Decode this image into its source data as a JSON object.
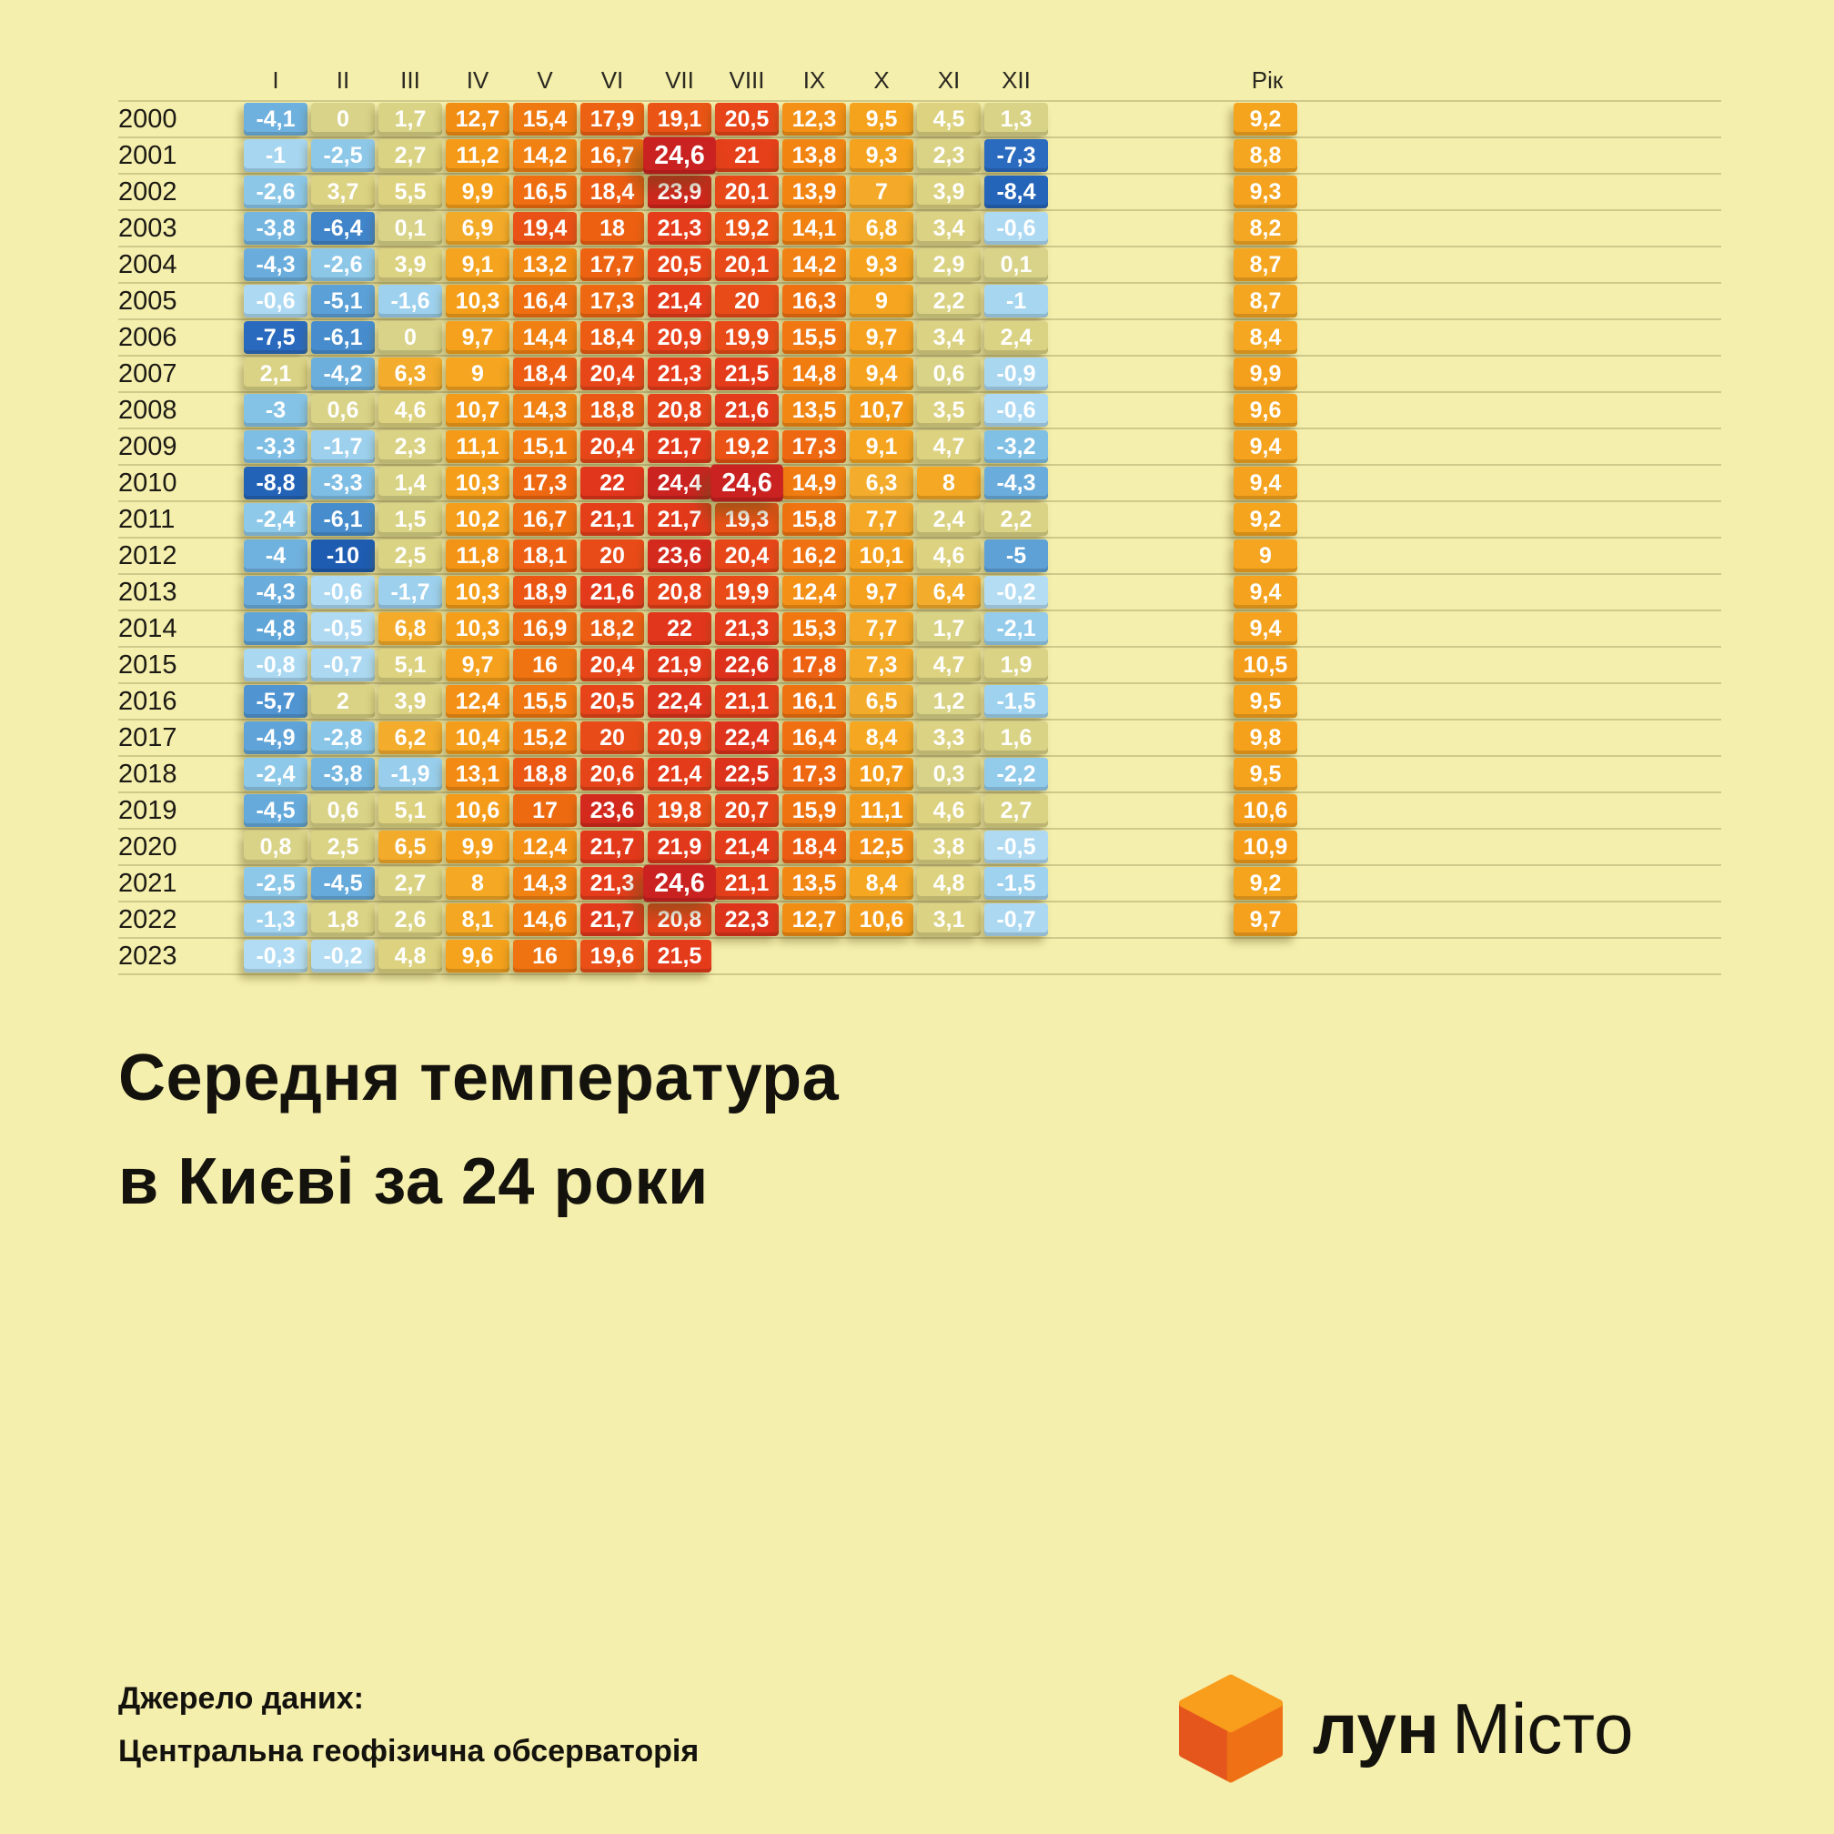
{
  "meta": {
    "title_line1": "Середня температура",
    "title_line2": "в Києві за 24 роки",
    "source_label": "Джерело даних:",
    "source_name": "Центральна геофізична обсерваторія",
    "logo_bold": "лун",
    "logo_rest": "Місто",
    "background_color": "#f5efad",
    "cube_colors": {
      "top": "#f99d1c",
      "left": "#e4561c",
      "right": "#ef7115"
    }
  },
  "chart_data": {
    "type": "heatmap",
    "title": "Середня температура в Києві за 24 роки",
    "columns": [
      "I",
      "II",
      "III",
      "IV",
      "V",
      "VI",
      "VII",
      "VIII",
      "IX",
      "X",
      "XI",
      "XII"
    ],
    "year_column_label": "Рік",
    "rows": [
      {
        "year": "2000",
        "values": [
          "-4,1",
          "0",
          "1,7",
          "12,7",
          "15,4",
          "17,9",
          "19,1",
          "20,5",
          "12,3",
          "9,5",
          "4,5",
          "1,3"
        ],
        "avg": "9,2"
      },
      {
        "year": "2001",
        "values": [
          "-1",
          "-2,5",
          "2,7",
          "11,2",
          "14,2",
          "16,7",
          "24,6",
          "21",
          "13,8",
          "9,3",
          "2,3",
          "-7,3"
        ],
        "avg": "8,8"
      },
      {
        "year": "2002",
        "values": [
          "-2,6",
          "3,7",
          "5,5",
          "9,9",
          "16,5",
          "18,4",
          "23,9",
          "20,1",
          "13,9",
          "7",
          "3,9",
          "-8,4"
        ],
        "avg": "9,3"
      },
      {
        "year": "2003",
        "values": [
          "-3,8",
          "-6,4",
          "0,1",
          "6,9",
          "19,4",
          "18",
          "21,3",
          "19,2",
          "14,1",
          "6,8",
          "3,4",
          "-0,6"
        ],
        "avg": "8,2"
      },
      {
        "year": "2004",
        "values": [
          "-4,3",
          "-2,6",
          "3,9",
          "9,1",
          "13,2",
          "17,7",
          "20,5",
          "20,1",
          "14,2",
          "9,3",
          "2,9",
          "0,1"
        ],
        "avg": "8,7"
      },
      {
        "year": "2005",
        "values": [
          "-0,6",
          "-5,1",
          "-1,6",
          "10,3",
          "16,4",
          "17,3",
          "21,4",
          "20",
          "16,3",
          "9",
          "2,2",
          "-1"
        ],
        "avg": "8,7"
      },
      {
        "year": "2006",
        "values": [
          "-7,5",
          "-6,1",
          "0",
          "9,7",
          "14,4",
          "18,4",
          "20,9",
          "19,9",
          "15,5",
          "9,7",
          "3,4",
          "2,4"
        ],
        "avg": "8,4"
      },
      {
        "year": "2007",
        "values": [
          "2,1",
          "-4,2",
          "6,3",
          "9",
          "18,4",
          "20,4",
          "21,3",
          "21,5",
          "14,8",
          "9,4",
          "0,6",
          "-0,9"
        ],
        "avg": "9,9"
      },
      {
        "year": "2008",
        "values": [
          "-3",
          "0,6",
          "4,6",
          "10,7",
          "14,3",
          "18,8",
          "20,8",
          "21,6",
          "13,5",
          "10,7",
          "3,5",
          "-0,6"
        ],
        "avg": "9,6"
      },
      {
        "year": "2009",
        "values": [
          "-3,3",
          "-1,7",
          "2,3",
          "11,1",
          "15,1",
          "20,4",
          "21,7",
          "19,2",
          "17,3",
          "9,1",
          "4,7",
          "-3,2"
        ],
        "avg": "9,4"
      },
      {
        "year": "2010",
        "values": [
          "-8,8",
          "-3,3",
          "1,4",
          "10,3",
          "17,3",
          "22",
          "24,4",
          "24,6",
          "14,9",
          "6,3",
          "8",
          "-4,3"
        ],
        "avg": "9,4"
      },
      {
        "year": "2011",
        "values": [
          "-2,4",
          "-6,1",
          "1,5",
          "10,2",
          "16,7",
          "21,1",
          "21,7",
          "19,3",
          "15,8",
          "7,7",
          "2,4",
          "2,2"
        ],
        "avg": "9,2"
      },
      {
        "year": "2012",
        "values": [
          "-4",
          "-10",
          "2,5",
          "11,8",
          "18,1",
          "20",
          "23,6",
          "20,4",
          "16,2",
          "10,1",
          "4,6",
          "-5"
        ],
        "avg": "9"
      },
      {
        "year": "2013",
        "values": [
          "-4,3",
          "-0,6",
          "-1,7",
          "10,3",
          "18,9",
          "21,6",
          "20,8",
          "19,9",
          "12,4",
          "9,7",
          "6,4",
          "-0,2"
        ],
        "avg": "9,4"
      },
      {
        "year": "2014",
        "values": [
          "-4,8",
          "-0,5",
          "6,8",
          "10,3",
          "16,9",
          "18,2",
          "22",
          "21,3",
          "15,3",
          "7,7",
          "1,7",
          "-2,1"
        ],
        "avg": "9,4"
      },
      {
        "year": "2015",
        "values": [
          "-0,8",
          "-0,7",
          "5,1",
          "9,7",
          "16",
          "20,4",
          "21,9",
          "22,6",
          "17,8",
          "7,3",
          "4,7",
          "1,9"
        ],
        "avg": "10,5"
      },
      {
        "year": "2016",
        "values": [
          "-5,7",
          "2",
          "3,9",
          "12,4",
          "15,5",
          "20,5",
          "22,4",
          "21,1",
          "16,1",
          "6,5",
          "1,2",
          "-1,5"
        ],
        "avg": "9,5"
      },
      {
        "year": "2017",
        "values": [
          "-4,9",
          "-2,8",
          "6,2",
          "10,4",
          "15,2",
          "20",
          "20,9",
          "22,4",
          "16,4",
          "8,4",
          "3,3",
          "1,6"
        ],
        "avg": "9,8"
      },
      {
        "year": "2018",
        "values": [
          "-2,4",
          "-3,8",
          "-1,9",
          "13,1",
          "18,8",
          "20,6",
          "21,4",
          "22,5",
          "17,3",
          "10,7",
          "0,3",
          "-2,2"
        ],
        "avg": "9,5"
      },
      {
        "year": "2019",
        "values": [
          "-4,5",
          "0,6",
          "5,1",
          "10,6",
          "17",
          "23,6",
          "19,8",
          "20,7",
          "15,9",
          "11,1",
          "4,6",
          "2,7"
        ],
        "avg": "10,6"
      },
      {
        "year": "2020",
        "values": [
          "0,8",
          "2,5",
          "6,5",
          "9,9",
          "12,4",
          "21,7",
          "21,9",
          "21,4",
          "18,4",
          "12,5",
          "3,8",
          "-0,5"
        ],
        "avg": "10,9"
      },
      {
        "year": "2021",
        "values": [
          "-2,5",
          "-4,5",
          "2,7",
          "8",
          "14,3",
          "21,3",
          "24,6",
          "21,1",
          "13,5",
          "8,4",
          "4,8",
          "-1,5"
        ],
        "avg": "9,2"
      },
      {
        "year": "2022",
        "values": [
          "-1,3",
          "1,8",
          "2,6",
          "8,1",
          "14,6",
          "21,7",
          "20,8",
          "22,3",
          "12,7",
          "10,6",
          "3,1",
          "-0,7"
        ],
        "avg": "9,7"
      },
      {
        "year": "2023",
        "values": [
          "-0,3",
          "-0,2",
          "4,8",
          "9,6",
          "16",
          "19,6",
          "21,5",
          null,
          null,
          null,
          null,
          null
        ],
        "avg": null
      }
    ],
    "color_stops": [
      {
        "t": -10,
        "c": "#1d5cb0"
      },
      {
        "t": -7.2,
        "c": "#2b6cc0"
      },
      {
        "t": -6,
        "c": "#4a90ce"
      },
      {
        "t": -4.5,
        "c": "#66aadb"
      },
      {
        "t": -3,
        "c": "#85c3e6"
      },
      {
        "t": -1.5,
        "c": "#9fd2ee"
      },
      {
        "t": -0.05,
        "c": "#b6def4"
      },
      {
        "t": 0,
        "c": "#d8d389"
      },
      {
        "t": 5.8,
        "c": "#ddd27e"
      },
      {
        "t": 6.2,
        "c": "#f3ac2c"
      },
      {
        "t": 9,
        "c": "#f5a51f"
      },
      {
        "t": 11,
        "c": "#f49a18"
      },
      {
        "t": 13,
        "c": "#f28b13"
      },
      {
        "t": 15,
        "c": "#f17b11"
      },
      {
        "t": 17,
        "c": "#ee6a11"
      },
      {
        "t": 18.5,
        "c": "#ec5b13"
      },
      {
        "t": 20,
        "c": "#e84a18"
      },
      {
        "t": 21.5,
        "c": "#e43b1b"
      },
      {
        "t": 23,
        "c": "#da2d1c"
      },
      {
        "t": 24,
        "c": "#d0261d"
      },
      {
        "t": 24.6,
        "c": "#c92221"
      }
    ],
    "peak_threshold": 24.5
  }
}
